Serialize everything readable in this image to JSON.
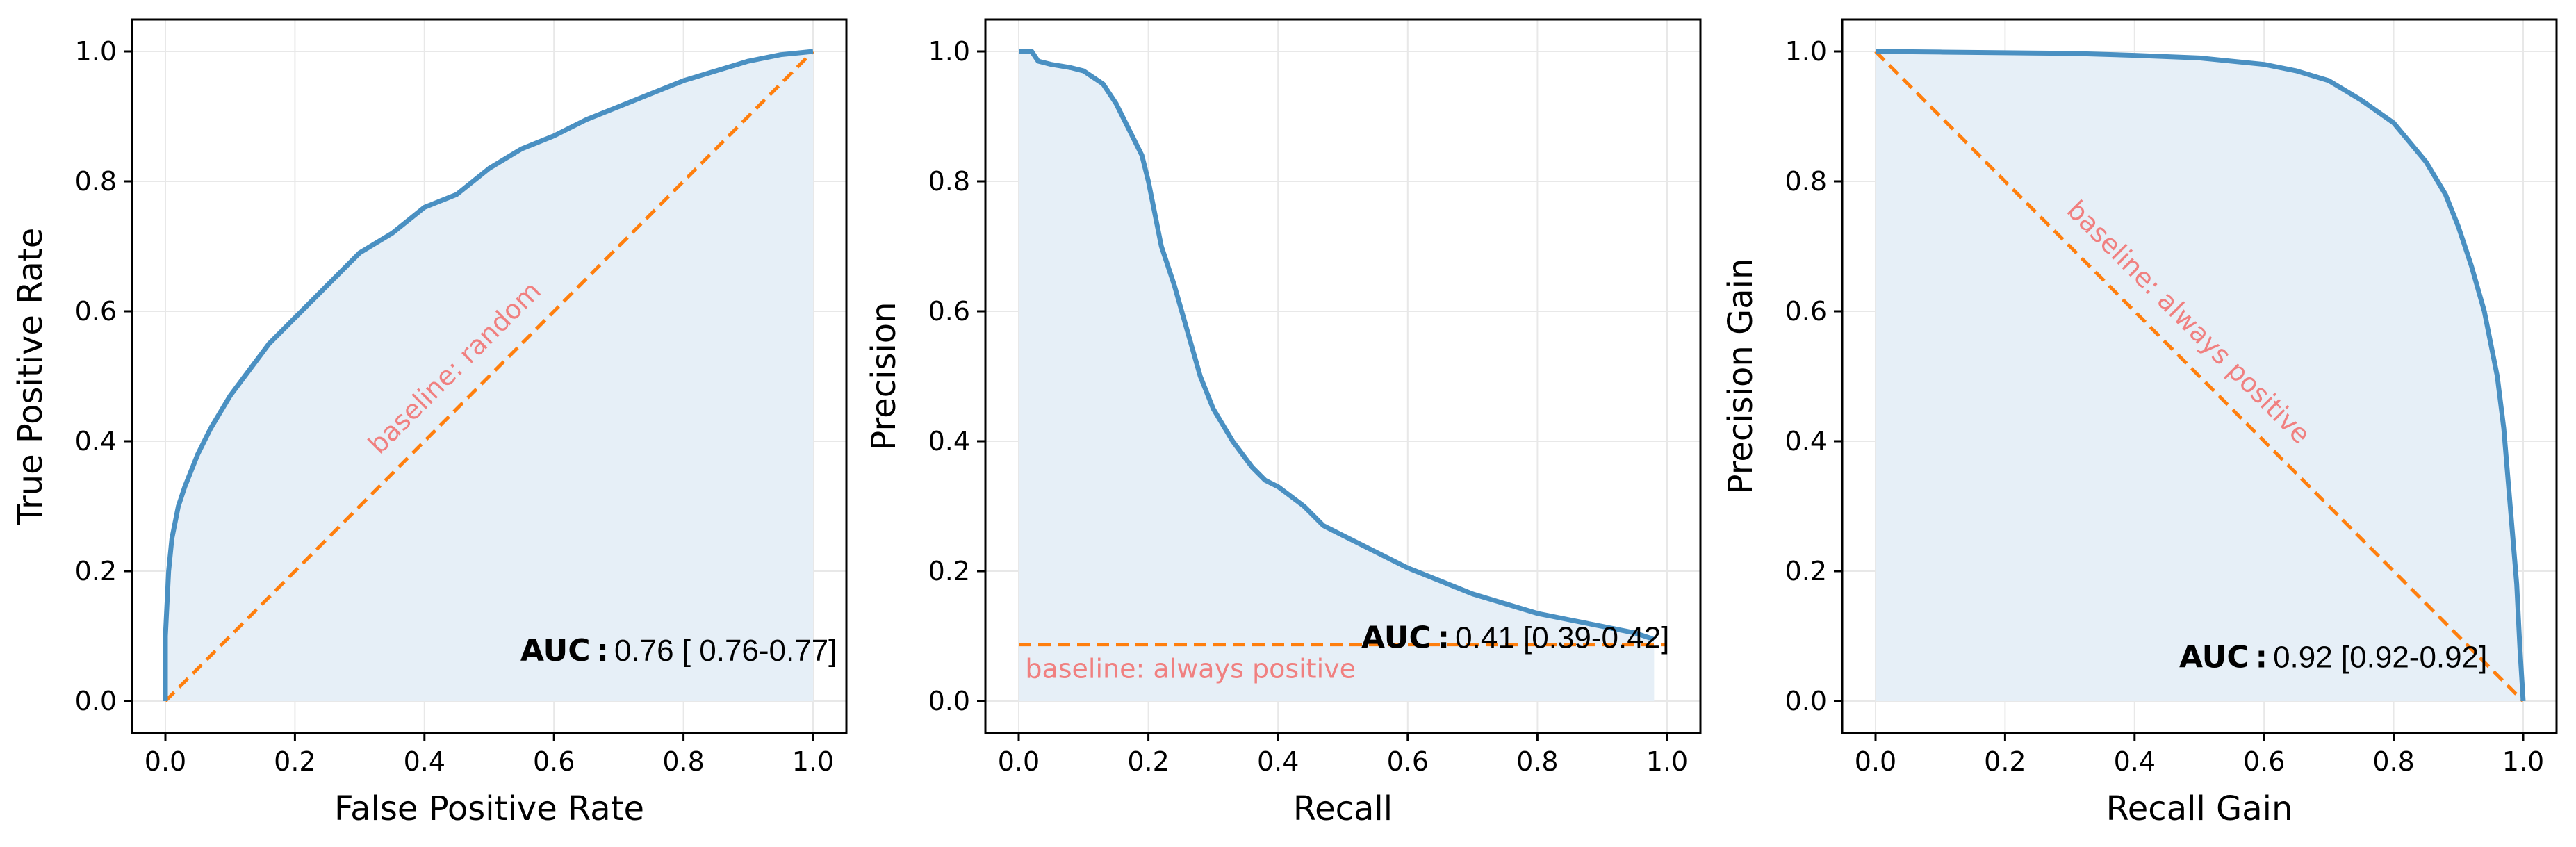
{
  "colors": {
    "curve": "#4a90c2",
    "fill": "#e6eff7",
    "baseline": "#ff7f0e",
    "baseline_text": "#f08080",
    "grid": "#e8e8e8",
    "axis": "#000000"
  },
  "chart_data": [
    {
      "type": "line",
      "xlabel": "False Positive Rate",
      "ylabel": "True Positive Rate",
      "xlim": [
        0,
        1
      ],
      "ylim": [
        0,
        1
      ],
      "xticks": [
        "0.0",
        "0.2",
        "0.4",
        "0.6",
        "0.8",
        "1.0"
      ],
      "yticks": [
        "0.0",
        "0.2",
        "0.4",
        "0.6",
        "0.8",
        "1.0"
      ],
      "grid": true,
      "filled": true,
      "curve": {
        "x": [
          0,
          0.0,
          0.005,
          0.01,
          0.02,
          0.03,
          0.05,
          0.07,
          0.1,
          0.13,
          0.16,
          0.2,
          0.25,
          0.3,
          0.35,
          0.4,
          0.45,
          0.5,
          0.55,
          0.6,
          0.65,
          0.7,
          0.75,
          0.8,
          0.85,
          0.9,
          0.95,
          1.0
        ],
        "y": [
          0,
          0.1,
          0.2,
          0.25,
          0.3,
          0.33,
          0.38,
          0.42,
          0.47,
          0.51,
          0.55,
          0.59,
          0.64,
          0.69,
          0.72,
          0.76,
          0.78,
          0.82,
          0.85,
          0.87,
          0.895,
          0.915,
          0.935,
          0.955,
          0.97,
          0.985,
          0.995,
          1.0
        ]
      },
      "baseline": {
        "x": [
          0,
          1
        ],
        "y": [
          0,
          1
        ]
      },
      "baseline_label": "baseline: random",
      "auc_label": "AUC :",
      "auc_value": "0.76 [ 0.76-0.77]"
    },
    {
      "type": "line",
      "xlabel": "Recall",
      "ylabel": "Precision",
      "xlim": [
        0,
        1
      ],
      "ylim": [
        0,
        1
      ],
      "xticks": [
        "0.0",
        "0.2",
        "0.4",
        "0.6",
        "0.8",
        "1.0"
      ],
      "yticks": [
        "0.0",
        "0.2",
        "0.4",
        "0.6",
        "0.8",
        "1.0"
      ],
      "grid": true,
      "filled": true,
      "curve": {
        "x": [
          0,
          0.02,
          0.03,
          0.05,
          0.08,
          0.1,
          0.13,
          0.15,
          0.17,
          0.19,
          0.2,
          0.22,
          0.24,
          0.26,
          0.28,
          0.3,
          0.33,
          0.36,
          0.38,
          0.4,
          0.44,
          0.47,
          0.5,
          0.55,
          0.6,
          0.65,
          0.7,
          0.75,
          0.8,
          0.85,
          0.9,
          0.95,
          0.98
        ],
        "y": [
          1.0,
          1.0,
          0.985,
          0.98,
          0.975,
          0.97,
          0.95,
          0.92,
          0.88,
          0.84,
          0.8,
          0.7,
          0.64,
          0.57,
          0.5,
          0.45,
          0.4,
          0.36,
          0.34,
          0.33,
          0.3,
          0.27,
          0.255,
          0.23,
          0.205,
          0.185,
          0.165,
          0.15,
          0.135,
          0.125,
          0.115,
          0.105,
          0.095
        ]
      },
      "baseline": {
        "x": [
          0,
          1
        ],
        "y": [
          0.087,
          0.087
        ]
      },
      "baseline_label": "baseline: always positive",
      "auc_label": "AUC :",
      "auc_value": "0.41 [0.39-0.42]"
    },
    {
      "type": "line",
      "xlabel": "Recall Gain",
      "ylabel": "Precision Gain",
      "xlim": [
        0,
        1
      ],
      "ylim": [
        0,
        1
      ],
      "xticks": [
        "0.0",
        "0.2",
        "0.4",
        "0.6",
        "0.8",
        "1.0"
      ],
      "yticks": [
        "0.0",
        "0.2",
        "0.4",
        "0.6",
        "0.8",
        "1.0"
      ],
      "grid": true,
      "filled": true,
      "curve": {
        "x": [
          0,
          0.1,
          0.2,
          0.3,
          0.4,
          0.5,
          0.6,
          0.65,
          0.7,
          0.75,
          0.8,
          0.85,
          0.88,
          0.9,
          0.92,
          0.94,
          0.96,
          0.97,
          0.98,
          0.99,
          0.995,
          1.0
        ],
        "y": [
          1.0,
          0.999,
          0.998,
          0.997,
          0.994,
          0.99,
          0.98,
          0.97,
          0.955,
          0.925,
          0.89,
          0.83,
          0.78,
          0.73,
          0.67,
          0.6,
          0.5,
          0.42,
          0.3,
          0.18,
          0.08,
          0.0
        ]
      },
      "baseline": {
        "x": [
          0,
          1
        ],
        "y": [
          1,
          0
        ]
      },
      "baseline_label": "baseline: always positive",
      "auc_label": "AUC :",
      "auc_value": "0.92 [0.92-0.92]"
    }
  ]
}
